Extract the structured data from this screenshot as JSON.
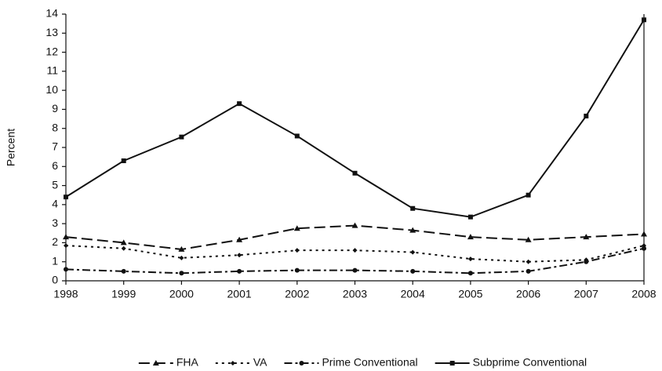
{
  "chart_data": {
    "type": "line",
    "y_label": "Percent",
    "x": [
      1998,
      1999,
      2000,
      2001,
      2002,
      2003,
      2004,
      2005,
      2006,
      2007,
      2008
    ],
    "xlim": [
      1998,
      2008
    ],
    "xticks": [
      1998,
      1999,
      2000,
      2001,
      2002,
      2003,
      2004,
      2005,
      2006,
      2007,
      2008
    ],
    "ylim": [
      0,
      14
    ],
    "yticks": [
      0,
      1,
      2,
      3,
      4,
      5,
      6,
      7,
      8,
      9,
      10,
      11,
      12,
      13,
      14
    ],
    "grid": false,
    "legend": "bottom",
    "series": [
      {
        "name": "FHA",
        "color": "#111111",
        "style": "dashed",
        "marker": "triangle",
        "values": [
          2.3,
          2.0,
          1.65,
          2.15,
          2.75,
          2.9,
          2.65,
          2.3,
          2.15,
          2.3,
          2.45
        ]
      },
      {
        "name": "VA",
        "color": "#111111",
        "style": "dotted",
        "marker": "diamond",
        "values": [
          1.85,
          1.7,
          1.2,
          1.35,
          1.6,
          1.6,
          1.5,
          1.15,
          1.0,
          1.1,
          1.85
        ]
      },
      {
        "name": "Prime Conventional",
        "color": "#111111",
        "style": "dashdot",
        "marker": "circle",
        "values": [
          0.6,
          0.5,
          0.4,
          0.5,
          0.55,
          0.55,
          0.5,
          0.4,
          0.5,
          1.0,
          1.7
        ]
      },
      {
        "name": "Subprime Conventional",
        "color": "#111111",
        "style": "solid",
        "marker": "square",
        "values": [
          4.4,
          6.3,
          7.55,
          9.3,
          7.6,
          5.65,
          3.8,
          3.35,
          4.5,
          8.65,
          13.7
        ]
      }
    ]
  }
}
